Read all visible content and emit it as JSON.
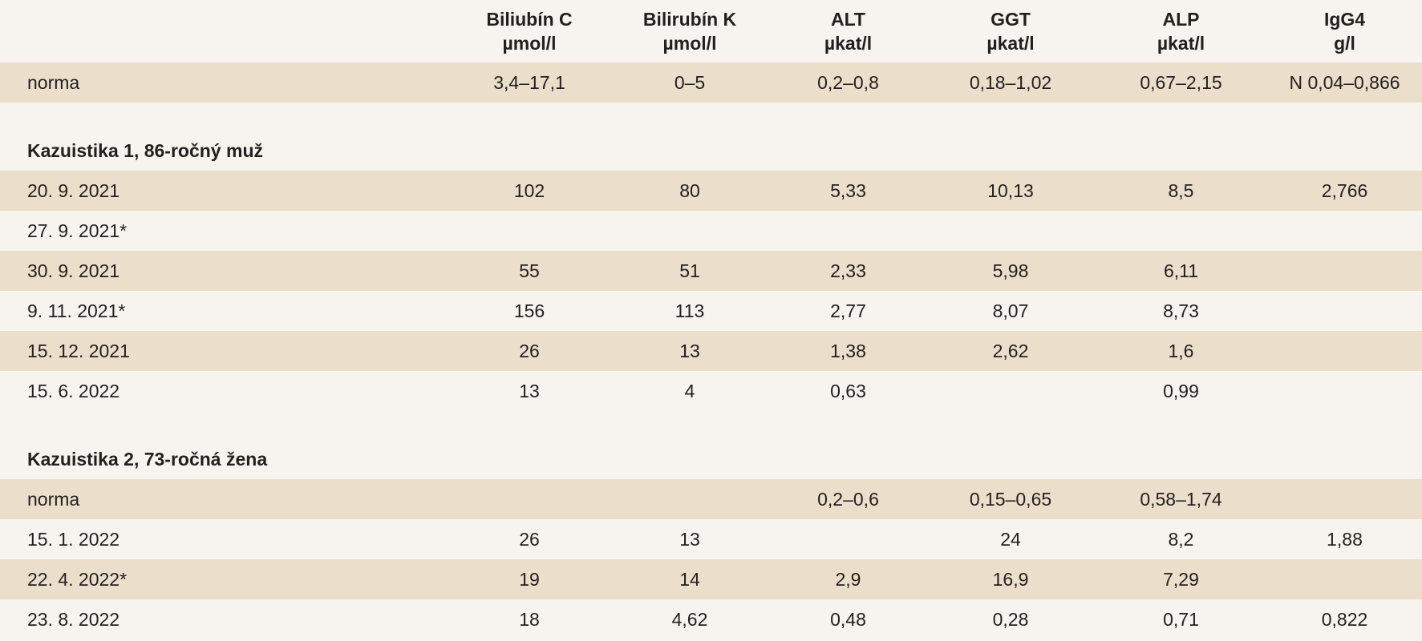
{
  "columns": [
    {
      "name": "Biliubín C",
      "unit": "µmol/l"
    },
    {
      "name": "Bilirubín K",
      "unit": "µmol/l"
    },
    {
      "name": "ALT",
      "unit": "µkat/l"
    },
    {
      "name": "GGT",
      "unit": "µkat/l"
    },
    {
      "name": "ALP",
      "unit": "µkat/l"
    },
    {
      "name": "IgG4",
      "unit": "g/l"
    }
  ],
  "norm_row": {
    "label": "norma",
    "values": [
      "3,4–17,1",
      "0–5",
      "0,2–0,8",
      "0,18–1,02",
      "0,67–2,15",
      "N 0,04–0,866"
    ]
  },
  "case1": {
    "title": "Kazuistika 1, 86-ročný muž",
    "rows": [
      {
        "label": "20. 9. 2021",
        "values": [
          "102",
          "80",
          "5,33",
          "10,13",
          "8,5",
          "2,766"
        ]
      },
      {
        "label": "27. 9. 2021*",
        "values": [
          "",
          "",
          "",
          "",
          "",
          ""
        ]
      },
      {
        "label": "30. 9. 2021",
        "values": [
          "55",
          "51",
          "2,33",
          "5,98",
          "6,11",
          ""
        ]
      },
      {
        "label": "9. 11. 2021*",
        "values": [
          "156",
          "113",
          "2,77",
          "8,07",
          "8,73",
          ""
        ]
      },
      {
        "label": "15. 12. 2021",
        "values": [
          "26",
          "13",
          "1,38",
          "2,62",
          "1,6",
          ""
        ]
      },
      {
        "label": "15. 6. 2022",
        "values": [
          "13",
          "4",
          "0,63",
          "",
          "0,99",
          ""
        ]
      }
    ]
  },
  "case2": {
    "title": "Kazuistika 2, 73-ročná žena",
    "rows": [
      {
        "label": "norma",
        "values": [
          "",
          "",
          "0,2–0,6",
          "0,15–0,65",
          "0,58–1,74",
          ""
        ]
      },
      {
        "label": "15. 1. 2022",
        "values": [
          "26",
          "13",
          "",
          "24",
          "8,2",
          "1,88"
        ]
      },
      {
        "label": "22. 4. 2022*",
        "values": [
          "19",
          "14",
          "2,9",
          "16,9",
          "7,29",
          ""
        ]
      },
      {
        "label": "23. 8. 2022",
        "values": [
          "18",
          "4,62",
          "0,48",
          "0,28",
          "0,71",
          "0,822"
        ]
      }
    ]
  }
}
